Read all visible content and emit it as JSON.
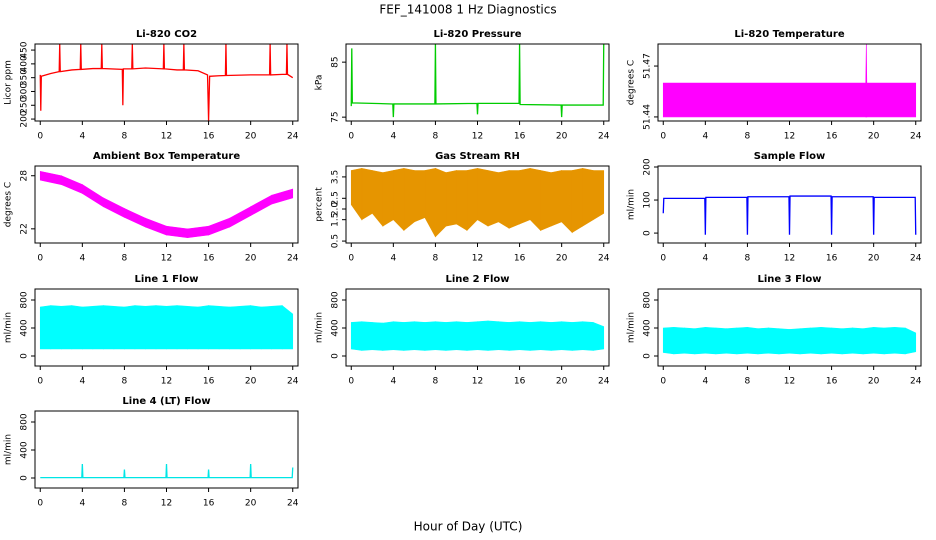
{
  "title": "FEF_141008  1 Hz Diagnostics",
  "xlabel": "Hour of Day (UTC)",
  "chart_data": [
    {
      "type": "line",
      "title": "Li-820 CO2",
      "ylabel": "Licor ppm",
      "xlim": [
        -0.5,
        24.5
      ],
      "xticks": [
        0,
        4,
        8,
        12,
        16,
        20,
        24
      ],
      "ylim": [
        193,
        472
      ],
      "yticks": [
        200,
        250,
        300,
        350,
        400,
        450
      ],
      "x": [
        0,
        0.05,
        0.1,
        1,
        1.8,
        1.85,
        1.9,
        3,
        3.8,
        3.85,
        3.9,
        5,
        5.8,
        5.85,
        5.9,
        7.8,
        7.85,
        7.9,
        8.7,
        8.75,
        8.8,
        10,
        11.7,
        11.75,
        11.8,
        13,
        13.6,
        13.65,
        13.7,
        15,
        15.9,
        16,
        16.1,
        17,
        17.6,
        17.65,
        17.7,
        20,
        21.8,
        21.85,
        21.9,
        23,
        23.4,
        23.45,
        23.5,
        24
      ],
      "series": [
        {
          "color": "#ff0000",
          "values": [
            360,
            230,
            355,
            365,
            372,
            470,
            372,
            378,
            380,
            470,
            380,
            383,
            383,
            470,
            383,
            380,
            250,
            382,
            382,
            470,
            382,
            385,
            382,
            470,
            382,
            378,
            378,
            470,
            378,
            375,
            360,
            195,
            355,
            357,
            358,
            470,
            358,
            360,
            360,
            470,
            360,
            362,
            362,
            470,
            362,
            350
          ]
        }
      ]
    },
    {
      "type": "line",
      "title": "Li-820 Pressure",
      "ylabel": "kPa",
      "xlim": [
        -0.5,
        24.5
      ],
      "xticks": [
        0,
        4,
        8,
        12,
        16,
        20,
        24
      ],
      "ylim": [
        74.3,
        88.3
      ],
      "yticks": [
        75,
        85
      ],
      "x": [
        0,
        0.05,
        0.1,
        3.95,
        4,
        4.05,
        7.95,
        8,
        8.05,
        11.95,
        12,
        12.05,
        15.95,
        16,
        16.05,
        19.95,
        20,
        20.05,
        23.95,
        24
      ],
      "series": [
        {
          "color": "#00cc00",
          "values": [
            77,
            87.5,
            77.6,
            77.4,
            75,
            77.4,
            77.4,
            88.3,
            77.4,
            77.5,
            75.5,
            77.5,
            77.5,
            88.3,
            77.3,
            77.2,
            75,
            77.2,
            77.2,
            88.3
          ]
        }
      ]
    },
    {
      "type": "band",
      "title": "Li-820 Temperature",
      "ylabel": "degrees C",
      "xlim": [
        -0.5,
        24.5
      ],
      "xticks": [
        0,
        4,
        8,
        12,
        16,
        20,
        24
      ],
      "ylim": [
        51.4376,
        51.483
      ],
      "yticks": [
        51.44,
        51.47
      ],
      "x": [
        0,
        19.25,
        19.3,
        19.35,
        24
      ],
      "series": [
        {
          "color": "#ff00ff",
          "values": [
            51.44,
            51.44,
            51.44,
            51.44,
            51.44
          ]
        },
        {
          "color": "#ff00ff",
          "values": [
            51.46,
            51.46,
            51.483,
            51.46,
            51.46
          ]
        }
      ]
    },
    {
      "type": "band",
      "title": "Ambient Box Temperature",
      "ylabel": "degrees C",
      "xlim": [
        -0.5,
        24.5
      ],
      "xticks": [
        0,
        4,
        8,
        12,
        16,
        20,
        24
      ],
      "ylim": [
        20.4,
        29.1
      ],
      "yticks": [
        22,
        28
      ],
      "x": [
        0,
        2,
        4,
        6,
        8,
        10,
        12,
        14,
        16,
        18,
        20,
        22,
        24
      ],
      "series": [
        {
          "color": "#ff00ff",
          "values": [
            27.5,
            27,
            26,
            24.5,
            23.3,
            22.2,
            21.3,
            21,
            21.3,
            22.2,
            23.5,
            24.8,
            25.5
          ]
        },
        {
          "color": "#ff00ff",
          "values": [
            28.5,
            28,
            27,
            25.5,
            24.3,
            23.2,
            22.3,
            22,
            22.3,
            23.2,
            24.5,
            25.8,
            26.5
          ]
        }
      ]
    },
    {
      "type": "band",
      "title": "Gas Stream RH",
      "ylabel": "percent",
      "xlim": [
        -0.5,
        24.5
      ],
      "xticks": [
        0,
        4,
        8,
        12,
        16,
        20,
        24
      ],
      "ylim": [
        0.41,
        4.01
      ],
      "yticks": [
        0.5,
        1.5,
        {
          "value": 2,
          "label": "2.0"
        },
        2.5,
        3.5
      ],
      "x": [
        0,
        1,
        2,
        3,
        4,
        5,
        6,
        7,
        8,
        9,
        10,
        11,
        12,
        13,
        14,
        15,
        16,
        17,
        18,
        19,
        20,
        21,
        22,
        23,
        24
      ],
      "series": [
        {
          "color": "#e69500",
          "values": [
            2.2,
            1.5,
            1.8,
            1.2,
            1.5,
            1.0,
            1.4,
            1.6,
            0.7,
            1.2,
            1.3,
            1.0,
            1.5,
            1.2,
            1.4,
            1.1,
            1.3,
            1.5,
            1.0,
            1.2,
            1.4,
            0.9,
            1.2,
            1.5,
            1.8
          ]
        },
        {
          "color": "#e69500",
          "values": [
            3.8,
            3.9,
            3.8,
            3.7,
            3.8,
            3.9,
            3.8,
            3.8,
            3.9,
            3.7,
            3.8,
            3.8,
            3.9,
            3.8,
            3.7,
            3.8,
            3.8,
            3.9,
            3.8,
            3.7,
            3.8,
            3.8,
            3.9,
            3.8,
            3.8
          ]
        }
      ]
    },
    {
      "type": "line",
      "title": "Sample Flow",
      "ylabel": "ml/min",
      "xlim": [
        -0.5,
        24.5
      ],
      "xticks": [
        0,
        4,
        8,
        12,
        16,
        20,
        24
      ],
      "ylim": [
        -30,
        203
      ],
      "yticks": [
        0,
        100,
        200
      ],
      "x": [
        0,
        0.05,
        0.1,
        3.95,
        4,
        4.05,
        7.95,
        8,
        8.05,
        11.95,
        12,
        12.05,
        15.95,
        16,
        16.05,
        19.95,
        20,
        20.05,
        23.95,
        24
      ],
      "series": [
        {
          "color": "#0000ff",
          "values": [
            60,
            105,
            105,
            105,
            -5,
            108,
            108,
            -5,
            110,
            110,
            -5,
            112,
            112,
            -5,
            110,
            110,
            -5,
            108,
            108,
            -5
          ]
        }
      ]
    },
    {
      "type": "band",
      "title": "Line 1 Flow",
      "ylabel": "ml/min",
      "xlim": [
        -0.5,
        24.5
      ],
      "xticks": [
        0,
        4,
        8,
        12,
        16,
        20,
        24
      ],
      "ylim": [
        -143,
        957
      ],
      "yticks": [
        0,
        400,
        800
      ],
      "x": [
        0,
        1,
        2,
        3,
        4,
        5,
        6,
        7,
        8,
        9,
        10,
        11,
        12,
        13,
        14,
        15,
        16,
        17,
        18,
        19,
        20,
        21,
        22,
        23,
        24
      ],
      "series": [
        {
          "color": "#00ffff",
          "values": [
            100,
            100,
            100,
            100,
            100,
            100,
            100,
            100,
            100,
            100,
            100,
            100,
            100,
            100,
            100,
            100,
            100,
            100,
            100,
            100,
            100,
            100,
            100,
            100,
            100
          ]
        },
        {
          "color": "#00ffff",
          "values": [
            700,
            720,
            710,
            720,
            700,
            710,
            720,
            710,
            700,
            720,
            710,
            720,
            710,
            720,
            710,
            700,
            720,
            710,
            700,
            710,
            720,
            700,
            710,
            720,
            600
          ]
        }
      ]
    },
    {
      "type": "band",
      "title": "Line 2 Flow",
      "ylabel": "ml/min",
      "xlim": [
        -0.5,
        24.5
      ],
      "xticks": [
        0,
        4,
        8,
        12,
        16,
        20,
        24
      ],
      "ylim": [
        -143,
        957
      ],
      "yticks": [
        0,
        400,
        800
      ],
      "x": [
        0,
        1,
        2,
        3,
        4,
        5,
        6,
        7,
        8,
        9,
        10,
        11,
        12,
        13,
        14,
        15,
        16,
        17,
        18,
        19,
        20,
        21,
        22,
        23,
        24
      ],
      "series": [
        {
          "color": "#00ffff",
          "values": [
            100,
            80,
            90,
            80,
            90,
            80,
            90,
            80,
            90,
            80,
            90,
            80,
            90,
            80,
            90,
            80,
            90,
            80,
            90,
            80,
            90,
            80,
            90,
            80,
            100
          ]
        },
        {
          "color": "#00ffff",
          "values": [
            480,
            490,
            480,
            470,
            490,
            480,
            490,
            480,
            490,
            480,
            490,
            480,
            490,
            500,
            490,
            480,
            490,
            480,
            490,
            480,
            490,
            480,
            490,
            480,
            420
          ]
        }
      ]
    },
    {
      "type": "band",
      "title": "Line 3 Flow",
      "ylabel": "ml/min",
      "xlim": [
        -0.5,
        24.5
      ],
      "xticks": [
        0,
        4,
        8,
        12,
        16,
        20,
        24
      ],
      "ylim": [
        -143,
        957
      ],
      "yticks": [
        0,
        400,
        800
      ],
      "x": [
        0,
        1,
        2,
        3,
        4,
        5,
        6,
        7,
        8,
        9,
        10,
        11,
        12,
        13,
        14,
        15,
        16,
        17,
        18,
        19,
        20,
        21,
        22,
        23,
        24
      ],
      "series": [
        {
          "color": "#00ffff",
          "values": [
            50,
            30,
            40,
            30,
            40,
            30,
            40,
            30,
            40,
            30,
            40,
            30,
            40,
            30,
            40,
            30,
            40,
            30,
            40,
            30,
            40,
            30,
            40,
            30,
            60
          ]
        },
        {
          "color": "#00ffff",
          "values": [
            400,
            410,
            400,
            390,
            410,
            400,
            390,
            400,
            410,
            390,
            400,
            390,
            380,
            390,
            400,
            410,
            400,
            390,
            400,
            390,
            410,
            400,
            410,
            400,
            330
          ]
        }
      ]
    },
    {
      "type": "line",
      "title": "Line 4 (LT) Flow",
      "ylabel": "ml/min",
      "xlim": [
        -0.5,
        24.5
      ],
      "xticks": [
        0,
        4,
        8,
        12,
        16,
        20,
        24
      ],
      "ylim": [
        -143,
        957
      ],
      "yticks": [
        0,
        400,
        800
      ],
      "x": [
        0,
        3.95,
        4,
        4.05,
        7.95,
        8,
        8.05,
        11.95,
        12,
        12.05,
        15.95,
        16,
        16.05,
        19.95,
        20,
        20.05,
        23.95,
        24
      ],
      "series": [
        {
          "color": "#00e5e5",
          "values": [
            5,
            5,
            200,
            5,
            5,
            120,
            5,
            5,
            200,
            5,
            5,
            120,
            5,
            5,
            200,
            5,
            5,
            150
          ]
        }
      ]
    }
  ]
}
